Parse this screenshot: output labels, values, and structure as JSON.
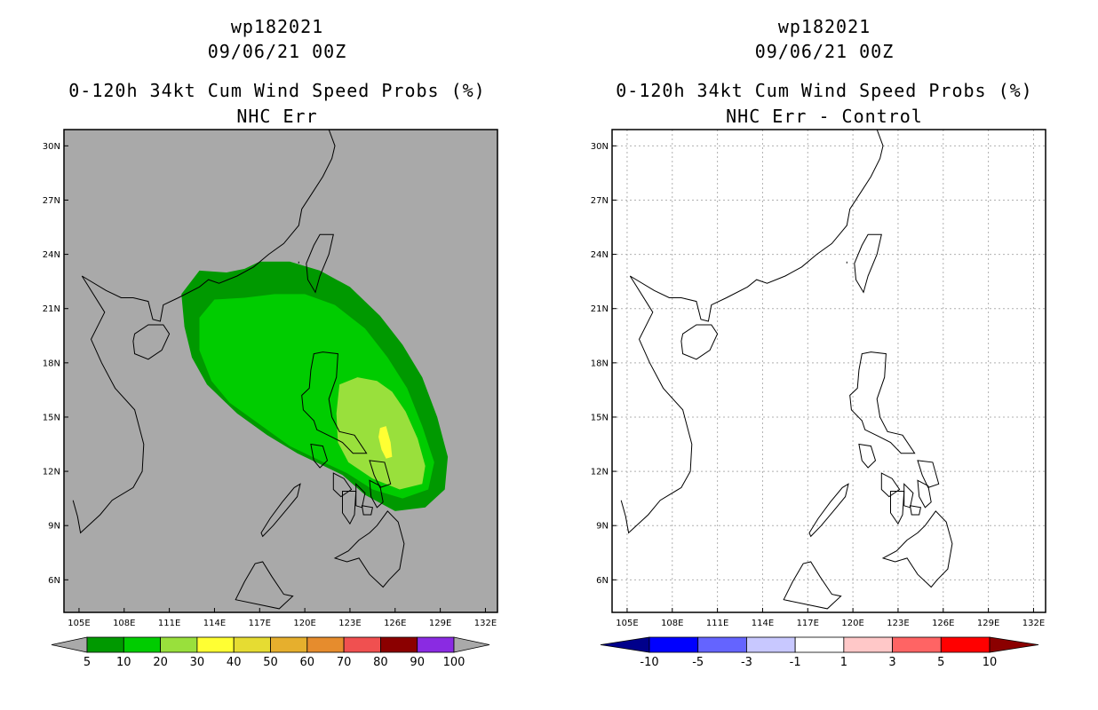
{
  "panels": [
    {
      "id": "left",
      "title_lines": [
        "wp182021",
        "09/06/21 00Z",
        "0-120h 34kt Cum Wind Speed Probs (%)",
        "NHC Err"
      ],
      "background": "#a9a9a9",
      "grid": false
    },
    {
      "id": "right",
      "title_lines": [
        "wp182021",
        "09/06/21 00Z",
        "0-120h 34kt Cum Wind Speed Probs (%)",
        "NHC Err - Control"
      ],
      "background": "#ffffff",
      "grid": true
    }
  ],
  "chart_data": [
    {
      "type": "heatmap",
      "title": "0-120h 34kt Cum Wind Speed Probs (%)",
      "subtitle": "NHC Err",
      "storm": "wp182021",
      "init_time": "09/06/21 00Z",
      "x_ticks": [
        "105E",
        "108E",
        "111E",
        "114E",
        "117E",
        "120E",
        "123E",
        "126E",
        "129E",
        "132E"
      ],
      "x_tick_values": [
        105,
        108,
        111,
        114,
        117,
        120,
        123,
        126,
        129,
        132
      ],
      "y_ticks": [
        "6N",
        "9N",
        "12N",
        "15N",
        "18N",
        "21N",
        "24N",
        "27N",
        "30N"
      ],
      "y_tick_values": [
        6,
        9,
        12,
        15,
        18,
        21,
        24,
        27,
        30
      ],
      "xlim": [
        104,
        132.8
      ],
      "ylim": [
        4.2,
        30.9
      ],
      "probability_contours": [
        {
          "level": 5,
          "color": "#009900",
          "polygon": [
            [
              111.8,
              21.8
            ],
            [
              113.0,
              23.1
            ],
            [
              114.8,
              23.0
            ],
            [
              116.0,
              23.2
            ],
            [
              117.0,
              23.6
            ],
            [
              119.0,
              23.6
            ],
            [
              121.0,
              23.1
            ],
            [
              123.0,
              22.2
            ],
            [
              125.0,
              20.6
            ],
            [
              126.5,
              19.0
            ],
            [
              127.8,
              17.2
            ],
            [
              128.8,
              15.0
            ],
            [
              129.5,
              12.8
            ],
            [
              129.3,
              11.0
            ],
            [
              128.0,
              10.0
            ],
            [
              126.0,
              9.8
            ],
            [
              124.0,
              10.7
            ],
            [
              122.5,
              11.8
            ],
            [
              121.0,
              12.4
            ],
            [
              119.5,
              13.0
            ],
            [
              117.5,
              14.0
            ],
            [
              115.5,
              15.2
            ],
            [
              113.5,
              16.8
            ],
            [
              112.5,
              18.3
            ],
            [
              112.0,
              20.0
            ]
          ]
        },
        {
          "level": 10,
          "color": "#00cc00",
          "polygon": [
            [
              113.0,
              20.5
            ],
            [
              114.0,
              21.5
            ],
            [
              116.0,
              21.6
            ],
            [
              118.0,
              21.8
            ],
            [
              120.0,
              21.8
            ],
            [
              122.0,
              21.2
            ],
            [
              124.0,
              19.9
            ],
            [
              125.5,
              18.3
            ],
            [
              126.8,
              16.6
            ],
            [
              127.8,
              14.5
            ],
            [
              128.6,
              12.5
            ],
            [
              128.2,
              11.0
            ],
            [
              126.5,
              10.5
            ],
            [
              124.5,
              11.0
            ],
            [
              122.8,
              11.9
            ],
            [
              121.0,
              12.6
            ],
            [
              119.0,
              13.4
            ],
            [
              117.0,
              14.6
            ],
            [
              115.0,
              15.8
            ],
            [
              113.8,
              17.0
            ],
            [
              113.0,
              18.7
            ]
          ]
        },
        {
          "level": 20,
          "color": "#99e03c",
          "polygon": [
            [
              122.3,
              16.8
            ],
            [
              123.5,
              17.2
            ],
            [
              124.8,
              17.0
            ],
            [
              125.8,
              16.4
            ],
            [
              126.7,
              15.3
            ],
            [
              127.5,
              13.8
            ],
            [
              128.0,
              12.3
            ],
            [
              127.8,
              11.3
            ],
            [
              126.3,
              11.0
            ],
            [
              124.5,
              11.6
            ],
            [
              122.9,
              12.5
            ],
            [
              122.2,
              13.6
            ],
            [
              122.1,
              15.2
            ]
          ]
        },
        {
          "level": 30,
          "color": "#ffff33",
          "polygon": [
            [
              125.0,
              14.4
            ],
            [
              125.4,
              14.5
            ],
            [
              125.7,
              13.6
            ],
            [
              125.8,
              12.8
            ],
            [
              125.4,
              12.7
            ],
            [
              125.1,
              13.2
            ],
            [
              124.9,
              13.9
            ]
          ]
        }
      ],
      "colorbar": {
        "labels": [
          "5",
          "10",
          "20",
          "30",
          "40",
          "50",
          "60",
          "70",
          "80",
          "90",
          "100"
        ],
        "colors": [
          "#009900",
          "#00cc00",
          "#99e03c",
          "#ffff33",
          "#e6dc32",
          "#e6af2d",
          "#e68c2d",
          "#f05050",
          "#8b0000",
          "#8a2be2"
        ],
        "extension_color": "#a9a9a9"
      }
    },
    {
      "type": "heatmap",
      "title": "0-120h 34kt Cum Wind Speed Probs (%)",
      "subtitle": "NHC Err - Control",
      "storm": "wp182021",
      "init_time": "09/06/21 00Z",
      "x_ticks": [
        "105E",
        "108E",
        "111E",
        "114E",
        "117E",
        "120E",
        "123E",
        "126E",
        "129E",
        "132E"
      ],
      "x_tick_values": [
        105,
        108,
        111,
        114,
        117,
        120,
        123,
        126,
        129,
        132
      ],
      "y_ticks": [
        "6N",
        "9N",
        "12N",
        "15N",
        "18N",
        "21N",
        "24N",
        "27N",
        "30N"
      ],
      "y_tick_values": [
        6,
        9,
        12,
        15,
        18,
        21,
        24,
        27,
        30
      ],
      "xlim": [
        104,
        132.8
      ],
      "ylim": [
        4.2,
        30.9
      ],
      "field": "all values within -1..1 (white)",
      "colorbar": {
        "labels": [
          "-10",
          "-5",
          "-3",
          "-1",
          "1",
          "3",
          "5",
          "10"
        ],
        "colors": [
          "#0000ff",
          "#6464ff",
          "#c8c8ff",
          "#ffffff",
          "#ffc8c8",
          "#ff6464",
          "#ff0000"
        ],
        "low_color": "#00008b",
        "high_color": "#8b0000"
      }
    }
  ]
}
